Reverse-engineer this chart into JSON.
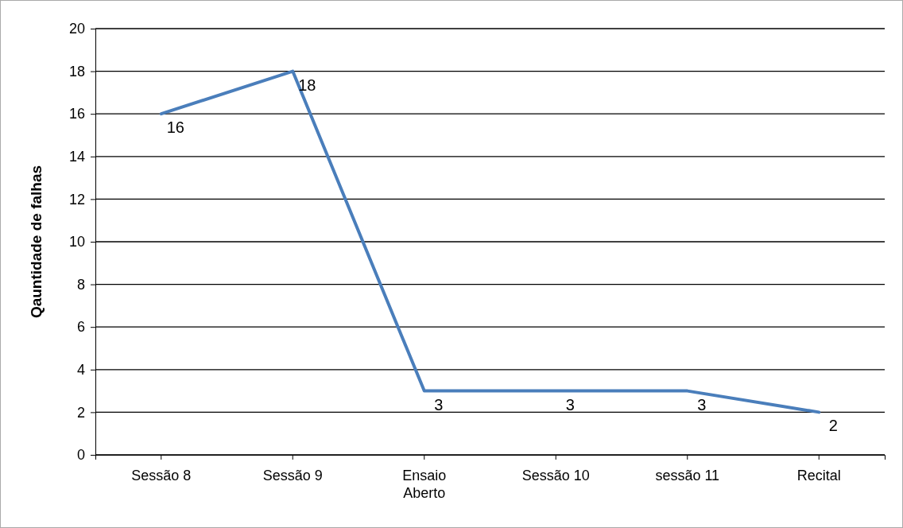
{
  "chart_data": {
    "type": "line",
    "ylabel": "Qauntidade de falhas",
    "categories": [
      "Sessão 8",
      "Sessão 9",
      "Ensaio Aberto",
      "Sessão 10",
      "sessão 11",
      "Recital"
    ],
    "series": [
      {
        "color": "#4a7ebb",
        "values": [
          16,
          18,
          3,
          3,
          3,
          2
        ]
      }
    ],
    "ylim": [
      0,
      20
    ],
    "yticks": [
      0,
      2,
      4,
      6,
      8,
      10,
      12,
      14,
      16,
      18,
      20
    ],
    "grid": "y",
    "data_labels": true,
    "marker": "none",
    "line_style": "solid"
  }
}
